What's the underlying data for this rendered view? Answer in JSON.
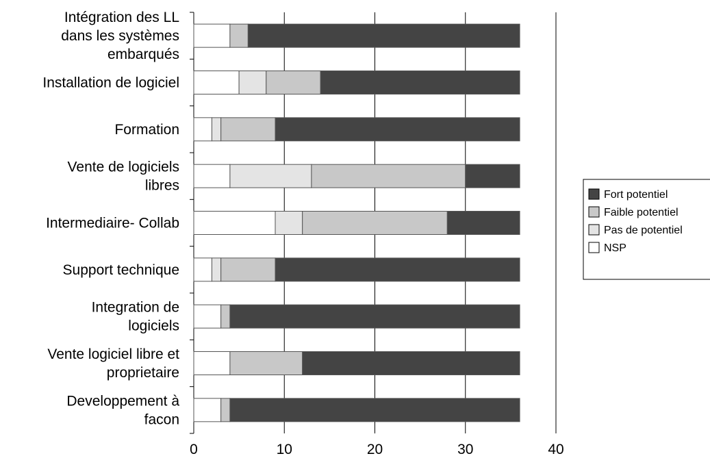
{
  "chart_data": {
    "type": "bar",
    "orientation": "horizontal",
    "stacked": true,
    "categories": [
      [
        "Intégration des  LL",
        "dans les systèmes",
        "embarqués"
      ],
      [
        "Installation de logiciel"
      ],
      [
        "Formation"
      ],
      [
        "Vente de logiciels",
        "libres"
      ],
      [
        "Intermediaire- Collab"
      ],
      [
        "Support technique"
      ],
      [
        "Integration de",
        "logiciels"
      ],
      [
        "Vente logiciel libre et",
        "proprietaire"
      ],
      [
        "Developpement à",
        "facon"
      ]
    ],
    "series": [
      {
        "name": "NSP",
        "color": "#ffffff",
        "values": [
          4,
          5,
          2,
          4,
          9,
          2,
          3,
          4,
          3
        ]
      },
      {
        "name": "Pas de potentiel",
        "color": "#e4e4e4",
        "values": [
          0,
          3,
          1,
          9,
          3,
          1,
          0,
          0,
          0
        ]
      },
      {
        "name": "Faible potentiel",
        "color": "#c8c8c8",
        "values": [
          2,
          6,
          6,
          17,
          16,
          6,
          1,
          8,
          1
        ]
      },
      {
        "name": "Fort potentiel",
        "color": "#444444",
        "values": [
          30,
          22,
          27,
          6,
          8,
          27,
          32,
          24,
          32
        ]
      }
    ],
    "xticks": [
      0,
      10,
      20,
      30,
      40
    ],
    "xlim": [
      0,
      40
    ],
    "grid": true,
    "legend_order": [
      "Fort potentiel",
      "Faible potentiel",
      "Pas de potentiel",
      "NSP"
    ],
    "legend_position": "right"
  }
}
